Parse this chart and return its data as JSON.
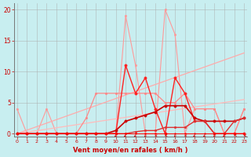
{
  "xlabel": "Vent moyen/en rafales ( km/h )",
  "bg_color": "#c8eef0",
  "grid_color": "#aaaaaa",
  "x_ticks": [
    0,
    1,
    2,
    3,
    4,
    5,
    6,
    7,
    8,
    9,
    10,
    11,
    12,
    13,
    14,
    15,
    16,
    17,
    18,
    19,
    20,
    21,
    22,
    23
  ],
  "ylim": [
    0,
    21
  ],
  "xlim": [
    0,
    23
  ],
  "yticks": [
    0,
    5,
    10,
    15,
    20
  ],
  "series": [
    {
      "color": "#ff9999",
      "lw": 0.8,
      "ms": 2.0,
      "x": [
        0,
        1,
        2,
        3,
        4,
        5,
        6,
        7,
        8,
        9,
        10,
        11,
        12,
        13,
        14,
        15,
        16,
        17,
        18,
        19,
        20,
        21,
        22,
        23
      ],
      "y": [
        4,
        0,
        0,
        4,
        0,
        0,
        0,
        0,
        0,
        0,
        0,
        19,
        11,
        0,
        0,
        20,
        16,
        0,
        4,
        4,
        4,
        0,
        0,
        4
      ]
    },
    {
      "color": "#ffaaaa",
      "lw": 0.9,
      "ms": 0,
      "x": [
        0,
        23
      ],
      "y": [
        0,
        13
      ]
    },
    {
      "color": "#ffbbbb",
      "lw": 0.9,
      "ms": 0,
      "x": [
        0,
        23
      ],
      "y": [
        0,
        5.5
      ]
    },
    {
      "color": "#ff8888",
      "lw": 0.9,
      "ms": 2.0,
      "x": [
        0,
        1,
        2,
        3,
        4,
        5,
        6,
        7,
        8,
        9,
        10,
        11,
        12,
        13,
        14,
        15,
        16,
        17,
        18,
        19,
        20,
        21,
        22,
        23
      ],
      "y": [
        0,
        0,
        0,
        0,
        0,
        0,
        0,
        2.5,
        6.5,
        6.5,
        6.5,
        6.5,
        6.5,
        6.5,
        6.5,
        5,
        5,
        6.5,
        4,
        4,
        4,
        0,
        0,
        4
      ]
    },
    {
      "color": "#ff2222",
      "lw": 1.0,
      "ms": 2.5,
      "x": [
        0,
        1,
        2,
        3,
        4,
        5,
        6,
        7,
        8,
        9,
        10,
        11,
        12,
        13,
        14,
        15,
        16,
        17,
        18,
        19,
        20,
        21,
        22,
        23
      ],
      "y": [
        0,
        0,
        0,
        0,
        0,
        0,
        0,
        0,
        0,
        0,
        0,
        11,
        6.5,
        9,
        4,
        0,
        9,
        6.5,
        2,
        2,
        0,
        0,
        0,
        0
      ]
    },
    {
      "color": "#cc0000",
      "lw": 1.2,
      "ms": 2.5,
      "x": [
        0,
        1,
        2,
        3,
        4,
        5,
        6,
        7,
        8,
        9,
        10,
        11,
        12,
        13,
        14,
        15,
        16,
        17,
        18,
        19,
        20,
        21,
        22,
        23
      ],
      "y": [
        0,
        0,
        0,
        0,
        0,
        0,
        0,
        0,
        0,
        0,
        0.5,
        2,
        2.5,
        3,
        3.5,
        4.5,
        4.5,
        4.5,
        2.5,
        2,
        2,
        2,
        2,
        2.5
      ]
    },
    {
      "color": "#dd3333",
      "lw": 1.0,
      "ms": 2.0,
      "x": [
        0,
        1,
        2,
        3,
        4,
        5,
        6,
        7,
        8,
        9,
        10,
        11,
        12,
        13,
        14,
        15,
        16,
        17,
        18,
        19,
        20,
        21,
        22,
        23
      ],
      "y": [
        0,
        0,
        0,
        0,
        0,
        0,
        0,
        0,
        0,
        0,
        0,
        0,
        0.3,
        0.5,
        0.5,
        1,
        1,
        1,
        2,
        2,
        0,
        0,
        2,
        2.5
      ]
    },
    {
      "color": "#ff0000",
      "lw": 0.7,
      "ms": 1.5,
      "x": [
        0,
        1,
        2,
        3,
        4,
        5,
        6,
        7,
        8,
        9,
        10,
        11,
        12,
        13,
        14,
        15,
        16,
        17,
        18,
        19,
        20,
        21,
        22,
        23
      ],
      "y": [
        0,
        0,
        0,
        0,
        0,
        0,
        0,
        0,
        0,
        0,
        0,
        0,
        0,
        0,
        0,
        0,
        0,
        0,
        0,
        0,
        0,
        0,
        0,
        0
      ]
    }
  ],
  "arrows": {
    "x": [
      10,
      11,
      12,
      13,
      14,
      15,
      16,
      17,
      18,
      19,
      20,
      21,
      22,
      23
    ],
    "angles": [
      210,
      225,
      220,
      200,
      270,
      250,
      200,
      270,
      220,
      215,
      200,
      215,
      235,
      245
    ]
  }
}
